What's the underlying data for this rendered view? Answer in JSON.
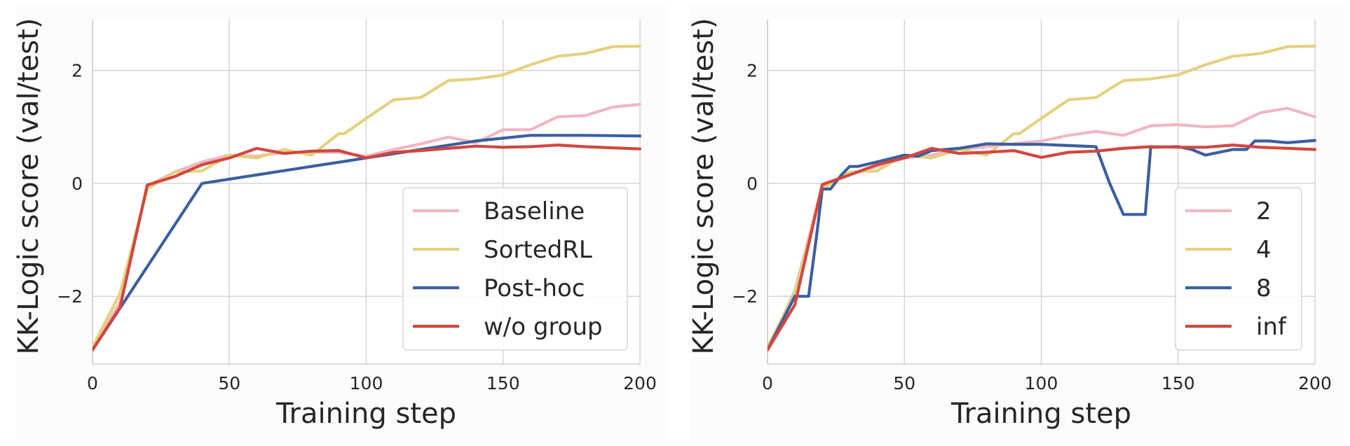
{
  "chart_data": [
    {
      "type": "line",
      "xlabel": "Training step",
      "ylabel": "KK-Logic score (val/test)",
      "xlim": [
        0,
        200
      ],
      "ylim": [
        -3.2,
        2.9
      ],
      "xticks": [
        0,
        50,
        100,
        150,
        200
      ],
      "yticks": [
        -2,
        0,
        2
      ],
      "xtick_labels": [
        "0",
        "50",
        "100",
        "150",
        "200"
      ],
      "ytick_labels": [
        "−2",
        "0",
        "2"
      ],
      "grid": true,
      "legend_position": "lower-right",
      "series": [
        {
          "name": "Baseline",
          "color": "#f0b6c4",
          "x": [
            0,
            10,
            20,
            30,
            40,
            50,
            60,
            70,
            80,
            90,
            100,
            110,
            120,
            130,
            140,
            150,
            160,
            170,
            180,
            190,
            200
          ],
          "y": [
            -2.95,
            -2.1,
            -0.05,
            0.2,
            0.38,
            0.5,
            0.48,
            0.55,
            0.55,
            0.55,
            0.48,
            0.6,
            0.7,
            0.82,
            0.72,
            0.95,
            0.95,
            1.18,
            1.2,
            1.35,
            1.4
          ]
        },
        {
          "name": "SortedRL",
          "color": "#e4d17f",
          "x": [
            0,
            10,
            20,
            30,
            40,
            50,
            60,
            70,
            80,
            90,
            92,
            100,
            110,
            120,
            130,
            140,
            150,
            160,
            170,
            180,
            190,
            200
          ],
          "y": [
            -2.9,
            -1.95,
            -0.1,
            0.2,
            0.22,
            0.5,
            0.45,
            0.6,
            0.5,
            0.88,
            0.88,
            1.15,
            1.48,
            1.52,
            1.82,
            1.85,
            1.92,
            2.1,
            2.25,
            2.3,
            2.42,
            2.43
          ]
        },
        {
          "name": "Post-hoc",
          "color": "#3c5f9f",
          "x": [
            0,
            40,
            80,
            100,
            120,
            140,
            160,
            180,
            200
          ],
          "y": [
            -2.95,
            0.0,
            0.3,
            0.45,
            0.6,
            0.75,
            0.85,
            0.85,
            0.84
          ]
        },
        {
          "name": "w/o group",
          "color": "#d1473f",
          "x": [
            0,
            10,
            20,
            30,
            40,
            50,
            60,
            70,
            80,
            90,
            100,
            110,
            120,
            130,
            140,
            150,
            160,
            170,
            180,
            190,
            200
          ],
          "y": [
            -2.95,
            -2.2,
            -0.03,
            0.12,
            0.33,
            0.45,
            0.62,
            0.53,
            0.57,
            0.58,
            0.45,
            0.55,
            0.58,
            0.62,
            0.66,
            0.64,
            0.65,
            0.68,
            0.65,
            0.63,
            0.61
          ]
        }
      ]
    },
    {
      "type": "line",
      "xlabel": "Training step",
      "ylabel": "KK-Logic score (val/test)",
      "xlim": [
        0,
        200
      ],
      "ylim": [
        -3.2,
        2.9
      ],
      "xticks": [
        0,
        50,
        100,
        150,
        200
      ],
      "yticks": [
        -2,
        0,
        2
      ],
      "xtick_labels": [
        "0",
        "50",
        "100",
        "150",
        "200"
      ],
      "ytick_labels": [
        "−2",
        "0",
        "2"
      ],
      "grid": true,
      "legend_position": "lower-right",
      "series": [
        {
          "name": "2",
          "color": "#f0b6c4",
          "x": [
            0,
            10,
            20,
            30,
            40,
            50,
            60,
            70,
            80,
            90,
            100,
            110,
            120,
            130,
            140,
            150,
            160,
            170,
            180,
            190,
            200
          ],
          "y": [
            -2.95,
            -1.9,
            -0.05,
            0.15,
            0.3,
            0.45,
            0.5,
            0.6,
            0.65,
            0.7,
            0.75,
            0.85,
            0.92,
            0.85,
            1.02,
            1.04,
            1.0,
            1.02,
            1.25,
            1.33,
            1.18
          ]
        },
        {
          "name": "4",
          "color": "#e4d17f",
          "x": [
            0,
            10,
            20,
            30,
            40,
            50,
            60,
            70,
            80,
            90,
            92,
            100,
            110,
            120,
            130,
            140,
            150,
            160,
            170,
            180,
            190,
            200
          ],
          "y": [
            -2.9,
            -1.95,
            -0.1,
            0.2,
            0.22,
            0.5,
            0.45,
            0.6,
            0.5,
            0.88,
            0.88,
            1.15,
            1.48,
            1.52,
            1.82,
            1.85,
            1.92,
            2.1,
            2.25,
            2.3,
            2.42,
            2.43
          ]
        },
        {
          "name": "8",
          "color": "#3c5f9f",
          "x": [
            0,
            10,
            15,
            18,
            20,
            23,
            27,
            30,
            33,
            40,
            50,
            55,
            60,
            70,
            80,
            90,
            100,
            110,
            120,
            125,
            130,
            135,
            138,
            140,
            150,
            155,
            160,
            170,
            175,
            178,
            180,
            183,
            190,
            200
          ],
          "y": [
            -2.95,
            -2.0,
            -2.0,
            -0.9,
            -0.1,
            -0.1,
            0.15,
            0.3,
            0.3,
            0.38,
            0.5,
            0.48,
            0.58,
            0.62,
            0.7,
            0.69,
            0.69,
            0.67,
            0.65,
            0.0,
            -0.55,
            -0.55,
            -0.55,
            0.64,
            0.65,
            0.6,
            0.5,
            0.6,
            0.6,
            0.75,
            0.75,
            0.75,
            0.72,
            0.76
          ]
        },
        {
          "name": "inf",
          "color": "#d1473f",
          "x": [
            0,
            10,
            20,
            30,
            40,
            50,
            60,
            70,
            80,
            90,
            100,
            110,
            120,
            130,
            140,
            150,
            160,
            170,
            180,
            190,
            200
          ],
          "y": [
            -2.95,
            -2.15,
            -0.02,
            0.15,
            0.33,
            0.45,
            0.62,
            0.53,
            0.55,
            0.58,
            0.46,
            0.55,
            0.57,
            0.62,
            0.65,
            0.64,
            0.64,
            0.68,
            0.64,
            0.62,
            0.6
          ]
        }
      ]
    }
  ]
}
